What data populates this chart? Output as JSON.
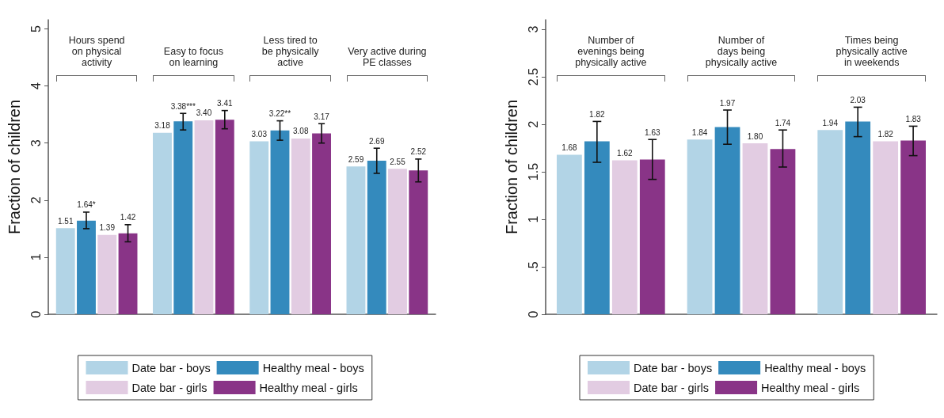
{
  "chart_data": [
    {
      "type": "bar",
      "ylabel": "Fraction of children",
      "categories": [
        "Hours spend\non physical\nactivity",
        "Easy to focus\non learning",
        "Less tired to\nbe physically\nactive",
        "Very active during\nPE classes"
      ],
      "series": [
        {
          "name": "Date bar - boys",
          "color": "#b2d4e6",
          "values": [
            1.51,
            3.18,
            3.03,
            2.59
          ],
          "value_labels": [
            "1.51",
            "3.18",
            "3.03",
            "2.59"
          ]
        },
        {
          "name": "Healthy meal - boys",
          "color": "#348abd",
          "values": [
            1.64,
            3.38,
            3.22,
            2.69
          ],
          "value_labels": [
            "1.64*",
            "3.38***",
            "3.22**",
            "2.69"
          ],
          "errors": [
            [
              1.5,
              1.79
            ],
            [
              3.23,
              3.52
            ],
            [
              3.05,
              3.39
            ],
            [
              2.47,
              2.91
            ]
          ]
        },
        {
          "name": "Date bar - girls",
          "color": "#e2cce2",
          "values": [
            1.39,
            3.4,
            3.08,
            2.55
          ],
          "value_labels": [
            "1.39",
            "3.40",
            "3.08",
            "2.55"
          ]
        },
        {
          "name": "Healthy meal - girls",
          "color": "#893487",
          "values": [
            1.42,
            3.41,
            3.17,
            2.52
          ],
          "value_labels": [
            "1.42",
            "3.41",
            "3.17",
            "2.52"
          ],
          "errors": [
            [
              1.27,
              1.57
            ],
            [
              3.25,
              3.57
            ],
            [
              3.0,
              3.34
            ],
            [
              2.32,
              2.72
            ]
          ]
        }
      ],
      "ylim": [
        0,
        5.16
      ],
      "yticks": [
        0,
        1,
        2,
        3,
        4,
        5
      ],
      "legend": "bottom"
    },
    {
      "type": "bar",
      "ylabel": "Fraction of children",
      "categories": [
        "Number of\nevenings being\nphysically active",
        "Number of\ndays being\nphysically active",
        "Times being\nphysically active\nin weekends"
      ],
      "series": [
        {
          "name": "Date bar - boys",
          "color": "#b2d4e6",
          "values": [
            1.68,
            1.84,
            1.94
          ],
          "value_labels": [
            "1.68",
            "1.84",
            "1.94"
          ]
        },
        {
          "name": "Healthy meal - boys",
          "color": "#348abd",
          "values": [
            1.82,
            1.97,
            2.03
          ],
          "value_labels": [
            "1.82",
            "1.97",
            "2.03"
          ],
          "errors": [
            [
              1.6,
              2.03
            ],
            [
              1.79,
              2.15
            ],
            [
              1.87,
              2.18
            ]
          ]
        },
        {
          "name": "Date bar - girls",
          "color": "#e2cce2",
          "values": [
            1.62,
            1.8,
            1.82
          ],
          "value_labels": [
            "1.62",
            "1.80",
            "1.82"
          ]
        },
        {
          "name": "Healthy meal - girls",
          "color": "#893487",
          "values": [
            1.63,
            1.74,
            1.83
          ],
          "value_labels": [
            "1.63",
            "1.74",
            "1.83"
          ],
          "errors": [
            [
              1.42,
              1.84
            ],
            [
              1.55,
              1.94
            ],
            [
              1.67,
              1.98
            ]
          ]
        }
      ],
      "ylim": [
        0,
        3.1
      ],
      "yticks": [
        0,
        {
          "value": 0.5,
          "label": ".5"
        },
        1,
        1.5,
        2,
        2.5,
        3
      ],
      "legend": "bottom"
    }
  ]
}
